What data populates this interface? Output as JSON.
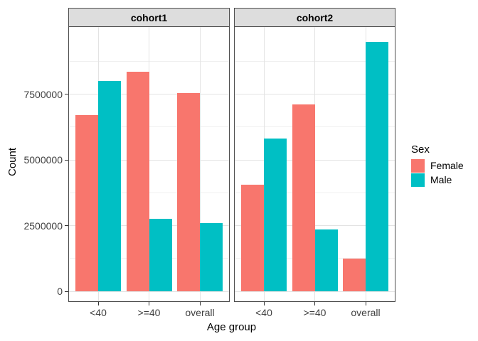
{
  "chart_data": {
    "type": "bar",
    "subtype": "grouped-faceted",
    "xlabel": "Age group",
    "ylabel": "Count",
    "categories": [
      "<40",
      ">=40",
      "overall"
    ],
    "yticks": [
      0,
      2500000,
      5000000,
      7500000
    ],
    "ytick_labels": [
      "0",
      "2500000",
      "5000000",
      "7500000"
    ],
    "ylim": [
      0,
      10080000
    ],
    "grid": "major-and-minor",
    "legend_position": "right",
    "facets": [
      {
        "label": "cohort1",
        "series": [
          {
            "name": "Female",
            "color": "#F8766D",
            "values": [
              6700000,
              8350000,
              7550000
            ]
          },
          {
            "name": "Male",
            "color": "#00BFC4",
            "values": [
              8000000,
              2750000,
              2600000
            ]
          }
        ]
      },
      {
        "label": "cohort2",
        "series": [
          {
            "name": "Female",
            "color": "#F8766D",
            "values": [
              4050000,
              7100000,
              1250000
            ]
          },
          {
            "name": "Male",
            "color": "#00BFC4",
            "values": [
              5800000,
              2350000,
              9500000
            ]
          }
        ]
      }
    ],
    "legend": {
      "title": "Sex",
      "entries": [
        {
          "label": "Female",
          "color": "#F8766D"
        },
        {
          "label": "Male",
          "color": "#00BFC4"
        }
      ]
    },
    "colors": {
      "female": "#F8766D",
      "male": "#00BFC4",
      "strip_background": "#DDDDDD",
      "panel_border": "#4D4D4D",
      "grid_major": "#E3E3E3",
      "grid_minor": "#F0F0F0",
      "axis_text": "#404040"
    }
  }
}
